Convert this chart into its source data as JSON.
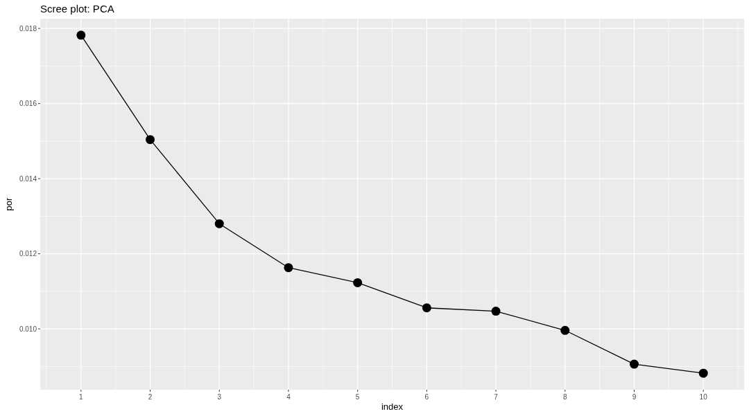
{
  "chart_data": {
    "type": "line",
    "title": "Scree plot: PCA",
    "xlabel": "index",
    "ylabel": "por",
    "x": [
      1,
      2,
      3,
      4,
      5,
      6,
      7,
      8,
      9,
      10
    ],
    "series": [
      {
        "color": "#000000",
        "values": [
          0.01782,
          0.01504,
          0.0128,
          0.01163,
          0.01123,
          0.01056,
          0.01047,
          0.00996,
          0.00906,
          0.00882
        ]
      }
    ],
    "xlim": [
      0.41,
      10.59
    ],
    "xticks": [
      1,
      2,
      3,
      4,
      5,
      6,
      7,
      8,
      9,
      10
    ],
    "ylim": [
      0.00838,
      0.01826
    ],
    "yticks": [
      {
        "value": 0.01,
        "label": "0.010"
      },
      {
        "value": 0.012,
        "label": "0.012"
      },
      {
        "value": 0.014,
        "label": "0.014"
      },
      {
        "value": 0.016,
        "label": "0.016"
      },
      {
        "value": 0.018,
        "label": "0.018"
      }
    ],
    "grid": true,
    "marker": "circle",
    "line_style": "solid"
  }
}
